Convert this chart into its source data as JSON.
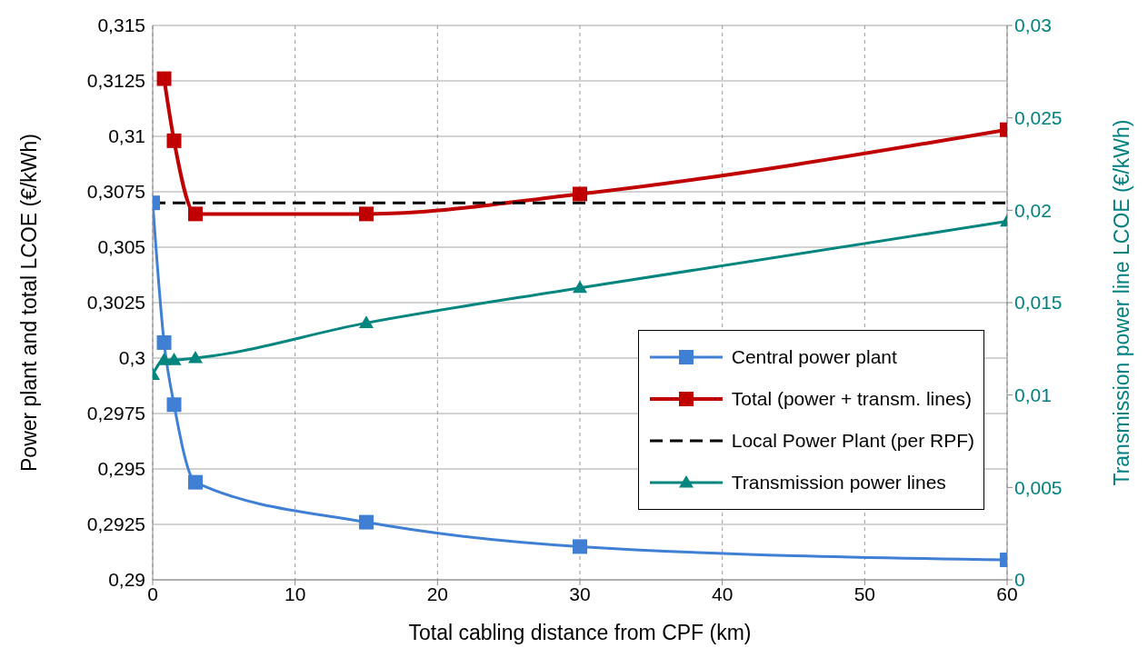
{
  "chart_data": {
    "type": "line",
    "xlabel": "Total cabling distance from CPF (km)",
    "ylabel": "Power plant and total LCOE (€/kWh)",
    "y2label": "Transmission power line LCOE (€/kWh)",
    "xlim": [
      0,
      60
    ],
    "xticks": [
      0,
      10,
      20,
      30,
      40,
      50,
      60
    ],
    "ylim": [
      0.29,
      0.315
    ],
    "yticks": [
      {
        "value": 0.29,
        "label": "0,29"
      },
      {
        "value": 0.2925,
        "label": "0,2925"
      },
      {
        "value": 0.295,
        "label": "0,295"
      },
      {
        "value": 0.2975,
        "label": "0,2975"
      },
      {
        "value": 0.3,
        "label": "0,3"
      },
      {
        "value": 0.3025,
        "label": "0,3025"
      },
      {
        "value": 0.305,
        "label": "0,305"
      },
      {
        "value": 0.3075,
        "label": "0,3075"
      },
      {
        "value": 0.31,
        "label": "0,31"
      },
      {
        "value": 0.3125,
        "label": "0,3125"
      },
      {
        "value": 0.315,
        "label": "0,315"
      }
    ],
    "y2lim": [
      0,
      0.03
    ],
    "y2ticks": [
      0,
      {
        "value": 0.005,
        "label": "0,005"
      },
      {
        "value": 0.01,
        "label": "0,01"
      },
      {
        "value": 0.015,
        "label": "0,015"
      },
      {
        "value": 0.02,
        "label": "0,02"
      },
      {
        "value": 0.025,
        "label": "0,025"
      },
      {
        "value": 0.03,
        "label": "0,03"
      }
    ],
    "grid": true,
    "legend": "bottom right",
    "series": [
      {
        "name": "Central power plant",
        "color": "#3f7fd4",
        "marker": "square",
        "x": [
          0,
          0.8,
          1.5,
          3,
          15,
          30,
          60
        ],
        "values": [
          0.307,
          0.3007,
          0.2979,
          0.2944,
          0.2926,
          0.2915,
          0.2909
        ]
      },
      {
        "name": "Total (power + transm. lines)",
        "color": "#c00000",
        "marker": "square",
        "x": [
          0.8,
          1.5,
          3,
          15,
          30,
          60
        ],
        "values": [
          0.3126,
          0.3098,
          0.3065,
          0.3065,
          0.3074,
          0.3103
        ]
      },
      {
        "name": "Local Power Plant (per RPF)",
        "color": "#000000",
        "marker": "none",
        "line_style": "dashed",
        "x": [
          0,
          60
        ],
        "values": [
          0.307,
          0.307
        ]
      },
      {
        "name": "Transmission power lines",
        "color": "#00857f",
        "marker": "triangle",
        "axis": "y2",
        "x": [
          0,
          0.8,
          1.5,
          3,
          15,
          30,
          60
        ],
        "values": [
          0.0111,
          0.0119,
          0.0119,
          0.012,
          0.0139,
          0.0158,
          0.0194
        ]
      }
    ]
  }
}
